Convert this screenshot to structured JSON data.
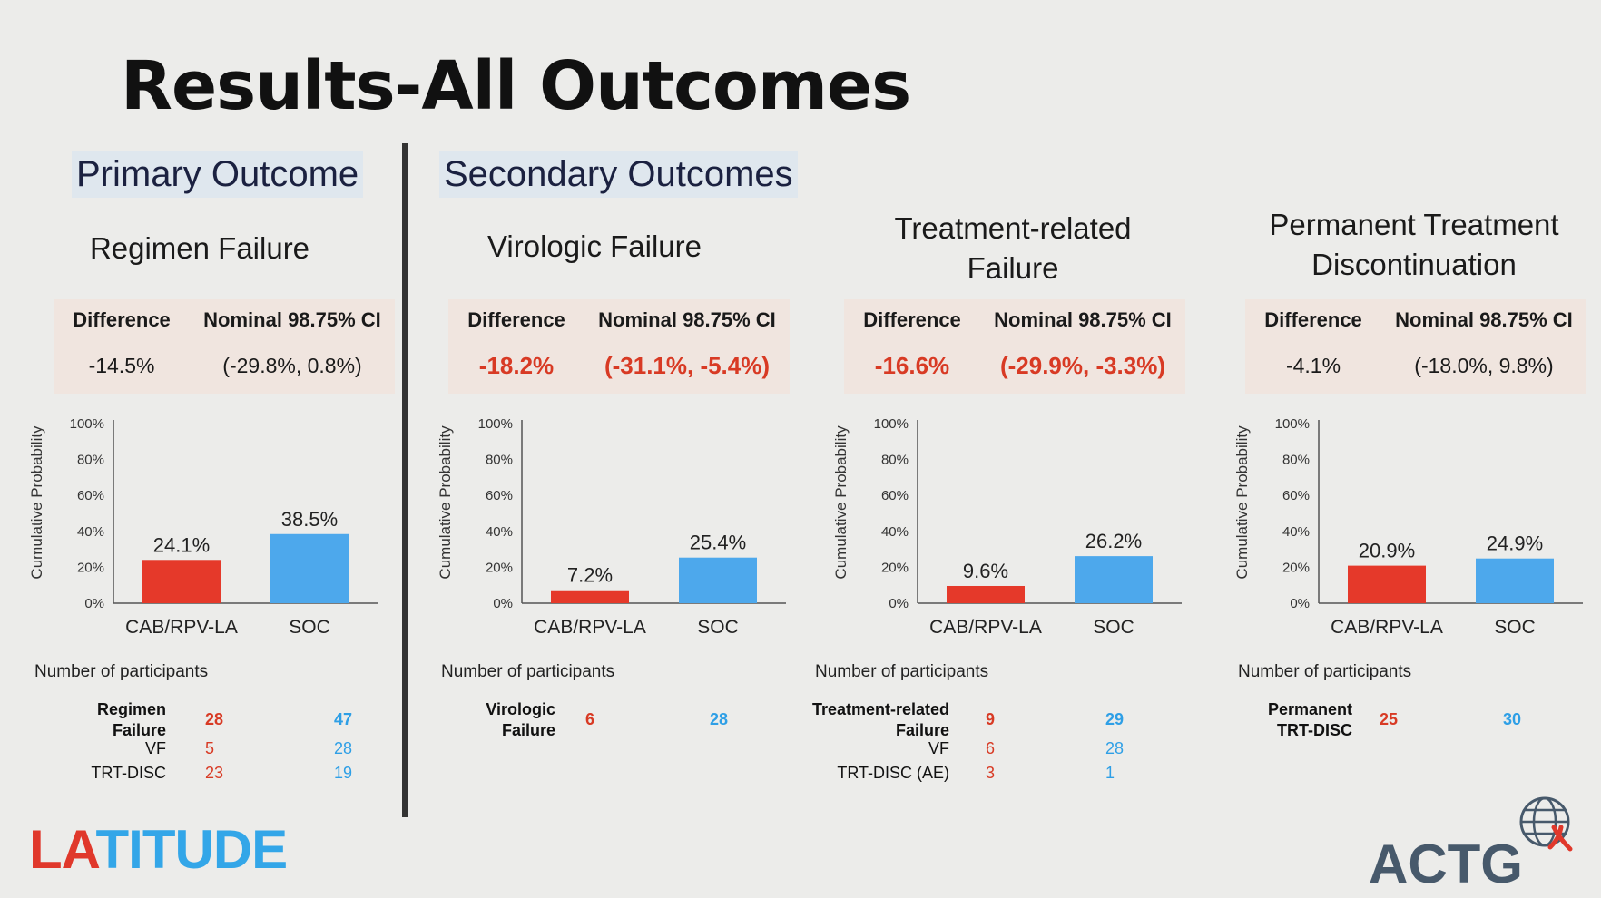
{
  "title": "Results-All Outcomes",
  "sections": {
    "primary": "Primary Outcome",
    "secondary": "Secondary Outcomes"
  },
  "ci_headers": {
    "difference": "Difference",
    "ci": "Nominal 98.75% CI"
  },
  "np_label": "Number of participants",
  "colors": {
    "cab": "#e5392a",
    "soc": "#4da8ec",
    "sig_text": "#d83a24",
    "soc_text": "#2e9fe6"
  },
  "panels": [
    {
      "subtitle": [
        "Regimen Failure"
      ],
      "difference": "-14.5%",
      "ci": "(-29.8%, 0.8%)",
      "significant": false,
      "participants": [
        {
          "name": "Regimen Failure",
          "bold": true,
          "cab": "28",
          "soc": "47"
        },
        {
          "name": "VF",
          "bold": false,
          "cab": "5",
          "soc": "28"
        },
        {
          "name": "TRT-DISC",
          "bold": false,
          "cab": "23",
          "soc": "19"
        }
      ]
    },
    {
      "subtitle": [
        "Virologic Failure"
      ],
      "difference": "-18.2%",
      "ci": "(-31.1%, -5.4%)",
      "significant": true,
      "participants": [
        {
          "name": "Virologic Failure",
          "bold": true,
          "cab": "6",
          "soc": "28"
        }
      ]
    },
    {
      "subtitle": [
        "Treatment-related",
        "Failure"
      ],
      "difference": "-16.6%",
      "ci": "(-29.9%, -3.3%)",
      "significant": true,
      "participants": [
        {
          "name": "Treatment-related Failure",
          "bold": true,
          "cab": "9",
          "soc": "29"
        },
        {
          "name": "VF",
          "bold": false,
          "cab": "6",
          "soc": "28"
        },
        {
          "name": "TRT-DISC (AE)",
          "bold": false,
          "cab": "3",
          "soc": "1"
        }
      ]
    },
    {
      "subtitle": [
        "Permanent Treatment",
        "Discontinuation"
      ],
      "difference": "-4.1%",
      "ci": "(-18.0%, 9.8%)",
      "significant": false,
      "participants": [
        {
          "name": "Permanent TRT-DISC",
          "bold": true,
          "cab": "25",
          "soc": "30"
        }
      ]
    }
  ],
  "chart_data": [
    {
      "type": "bar",
      "title": "Regimen Failure",
      "categories": [
        "CAB/RPV-LA",
        "SOC"
      ],
      "values": [
        24.1,
        38.5
      ],
      "value_labels": [
        "24.1%",
        "38.5%"
      ],
      "ylabel": "Cumulative Probability",
      "yticks": [
        "0%",
        "20%",
        "40%",
        "60%",
        "80%",
        "100%"
      ],
      "ylim": [
        0,
        100
      ]
    },
    {
      "type": "bar",
      "title": "Virologic Failure",
      "categories": [
        "CAB/RPV-LA",
        "SOC"
      ],
      "values": [
        7.2,
        25.4
      ],
      "value_labels": [
        "7.2%",
        "25.4%"
      ],
      "ylabel": "Cumulative Probability",
      "yticks": [
        "0%",
        "20%",
        "40%",
        "60%",
        "80%",
        "100%"
      ],
      "ylim": [
        0,
        100
      ]
    },
    {
      "type": "bar",
      "title": "Treatment-related Failure",
      "categories": [
        "CAB/RPV-LA",
        "SOC"
      ],
      "values": [
        9.6,
        26.2
      ],
      "value_labels": [
        "9.6%",
        "26.2%"
      ],
      "ylabel": "Cumulative Probability",
      "yticks": [
        "0%",
        "20%",
        "40%",
        "60%",
        "80%",
        "100%"
      ],
      "ylim": [
        0,
        100
      ]
    },
    {
      "type": "bar",
      "title": "Permanent Treatment Discontinuation",
      "categories": [
        "CAB/RPV-LA",
        "SOC"
      ],
      "values": [
        20.9,
        24.9
      ],
      "value_labels": [
        "20.9%",
        "24.9%"
      ],
      "ylabel": "Cumulative Probability",
      "yticks": [
        "0%",
        "20%",
        "40%",
        "60%",
        "80%",
        "100%"
      ],
      "ylim": [
        0,
        100
      ]
    }
  ],
  "logos": {
    "left_la": "LA",
    "left_rest": "TITUDE",
    "right": "ACTG"
  }
}
